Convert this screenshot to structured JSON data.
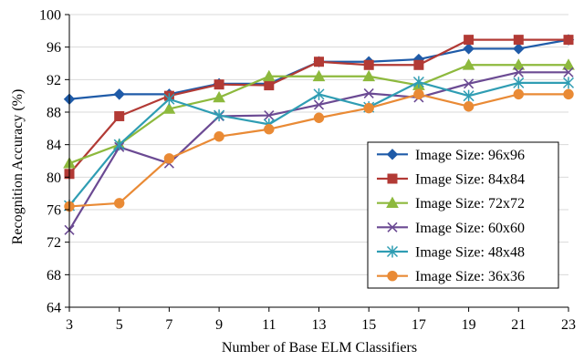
{
  "chart_data": {
    "type": "line",
    "title": "",
    "xlabel": "Number of Base ELM Classifiers",
    "ylabel": "Recognition Accuracy (%)",
    "x": [
      3,
      5,
      7,
      9,
      11,
      13,
      15,
      17,
      19,
      21,
      23
    ],
    "x_tick_labels": [
      "3",
      "5",
      "7",
      "9",
      "11",
      "13",
      "15",
      "17",
      "19",
      "21",
      "23"
    ],
    "xlim": [
      3,
      23
    ],
    "ylim": [
      64,
      100
    ],
    "y_ticks": [
      64,
      68,
      72,
      76,
      80,
      84,
      88,
      92,
      96,
      100
    ],
    "y_tick_labels": [
      "64",
      "68",
      "72",
      "76",
      "80",
      "84",
      "88",
      "92",
      "96",
      "100"
    ],
    "grid": "horizontal",
    "legend_position": "bottom-right",
    "series": [
      {
        "name": "Image Size: 96x96",
        "color": "#1f5ba8",
        "marker": "diamond",
        "values": [
          89.6,
          90.2,
          90.2,
          91.5,
          91.5,
          94.2,
          94.2,
          94.5,
          95.8,
          95.8,
          96.9
        ]
      },
      {
        "name": "Image Size: 84x84",
        "color": "#b23a35",
        "marker": "square",
        "values": [
          80.4,
          87.5,
          90.0,
          91.4,
          91.3,
          94.2,
          93.8,
          93.8,
          96.9,
          96.9,
          96.9
        ]
      },
      {
        "name": "Image Size: 72x72",
        "color": "#8db93d",
        "marker": "triangle",
        "values": [
          81.7,
          84.0,
          88.4,
          89.8,
          92.4,
          92.4,
          92.4,
          91.3,
          93.8,
          93.8,
          93.8
        ]
      },
      {
        "name": "Image Size: 60x60",
        "color": "#6b4a93",
        "marker": "x",
        "values": [
          73.5,
          83.7,
          81.7,
          87.5,
          87.6,
          88.9,
          90.3,
          89.8,
          91.5,
          92.9,
          92.9
        ]
      },
      {
        "name": "Image Size: 48x48",
        "color": "#2f9db3",
        "marker": "asterisk",
        "values": [
          76.5,
          84.0,
          89.6,
          87.6,
          86.5,
          90.2,
          88.6,
          91.7,
          90.0,
          91.6,
          91.6
        ]
      },
      {
        "name": "Image Size: 36x36",
        "color": "#e98a35",
        "marker": "circle",
        "values": [
          76.4,
          76.8,
          82.3,
          85.0,
          85.9,
          87.3,
          88.5,
          90.2,
          88.7,
          90.2,
          90.2
        ]
      }
    ]
  }
}
